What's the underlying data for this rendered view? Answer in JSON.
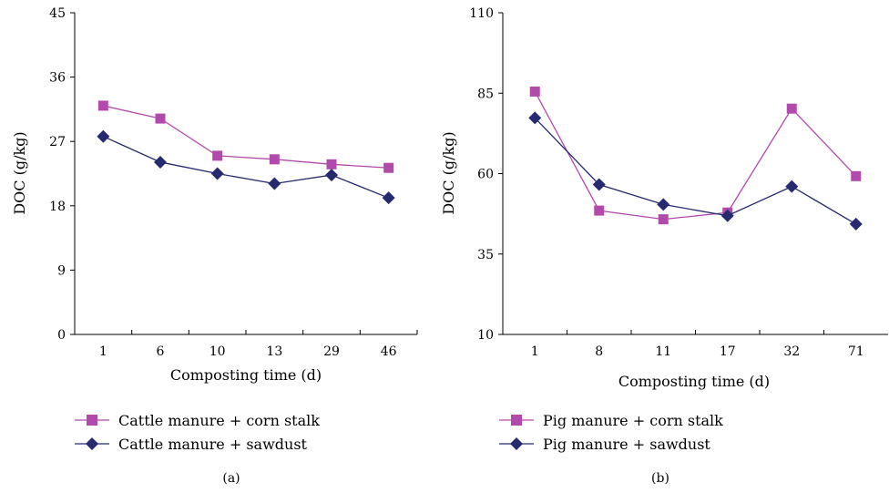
{
  "chart_data": [
    {
      "type": "line",
      "panel_label": "(a)",
      "categories": [
        "1",
        "6",
        "10",
        "13",
        "29",
        "46"
      ],
      "ylabel": "DOC (g/kg)",
      "xlabel": "Composting time (d)",
      "ylim": [
        0,
        45
      ],
      "yticks": [
        0,
        9,
        18,
        27,
        36,
        45
      ],
      "grid": false,
      "legend": "bottom",
      "series": [
        {
          "name": "Cattle manure + corn stalk",
          "marker": "square",
          "color": "#b24aab",
          "values": [
            32.0,
            30.2,
            25.0,
            24.5,
            23.8,
            23.3
          ]
        },
        {
          "name": "Cattle manure + sawdust",
          "marker": "diamond",
          "color": "#262a6e",
          "values": [
            27.7,
            24.1,
            22.5,
            21.1,
            22.3,
            19.1
          ]
        }
      ]
    },
    {
      "type": "line",
      "panel_label": "(b)",
      "categories": [
        "1",
        "8",
        "11",
        "17",
        "32",
        "71"
      ],
      "ylabel": "DOC (g/kg)",
      "xlabel": "Composting time (d)",
      "ylim": [
        10,
        110
      ],
      "yticks": [
        10,
        35,
        60,
        85,
        110
      ],
      "grid": false,
      "legend": "bottom",
      "series": [
        {
          "name": "Pig manure + corn stalk",
          "marker": "square",
          "color": "#b24aab",
          "values": [
            85.5,
            48.5,
            45.8,
            47.9,
            80.2,
            59.2
          ]
        },
        {
          "name": "Pig manure + sawdust",
          "marker": "diamond",
          "color": "#262a6e",
          "values": [
            77.3,
            56.6,
            50.4,
            46.9,
            56.0,
            44.3
          ]
        }
      ]
    }
  ]
}
